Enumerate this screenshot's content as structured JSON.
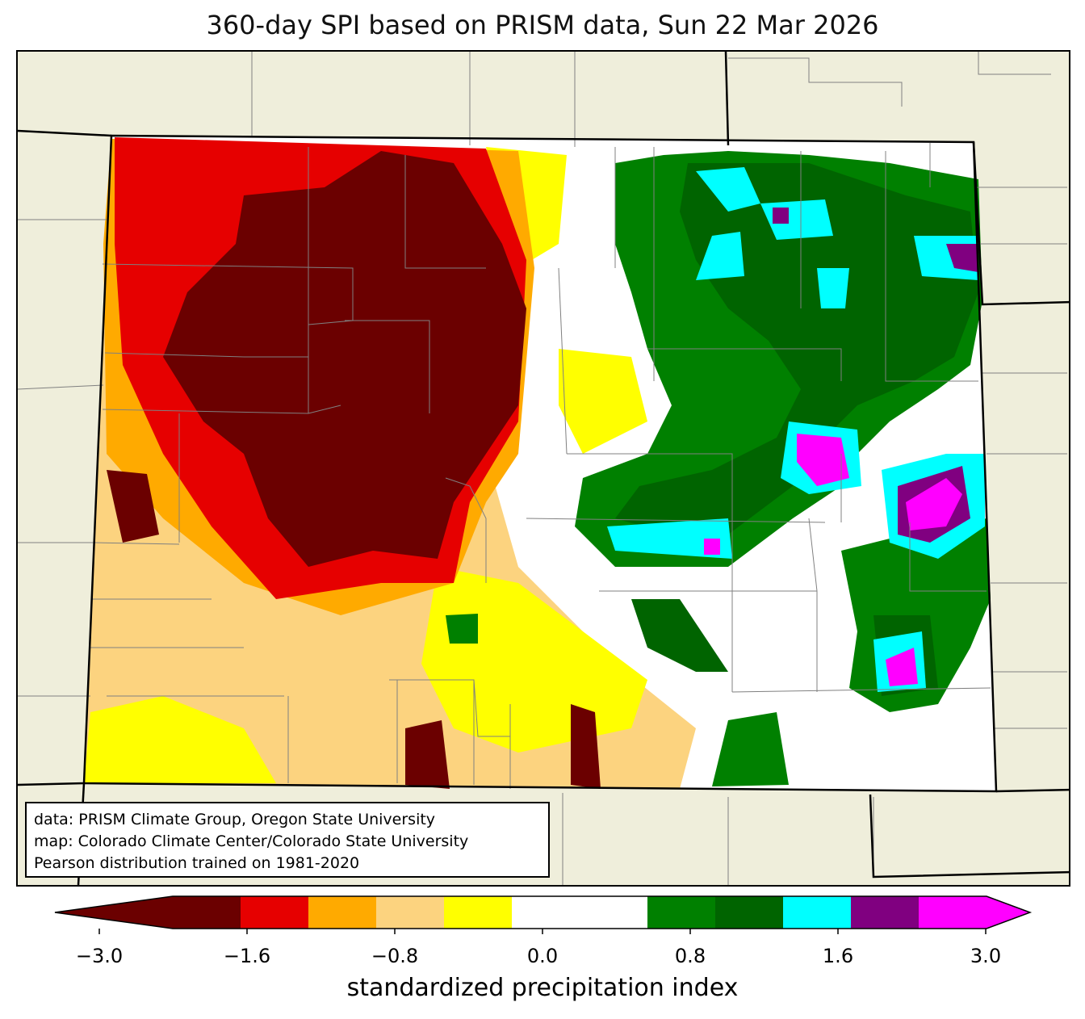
{
  "title": "360-day SPI based on PRISM data, Sun 22 Mar 2026",
  "credits": [
    "data: PRISM Climate Group, Oregon State University",
    "map: Colorado Climate Center/Colorado State University",
    "Pearson distribution trained on 1981-2020"
  ],
  "colorbar": {
    "label": "standardized precipitation index",
    "ticks": [
      "−3.0",
      "−1.6",
      "−0.8",
      "0.0",
      "0.8",
      "1.6",
      "3.0"
    ],
    "colors": [
      "#6b0000",
      "#e60000",
      "#ffaa00",
      "#fcd37f",
      "#ffff00",
      "#ffffff",
      "#ffffff",
      "#008000",
      "#006400",
      "#00ffff",
      "#800080",
      "#ff00ff"
    ]
  },
  "colors": {
    "background": "#efeedb",
    "state_border": "#000000",
    "county_border": "#808080"
  }
}
